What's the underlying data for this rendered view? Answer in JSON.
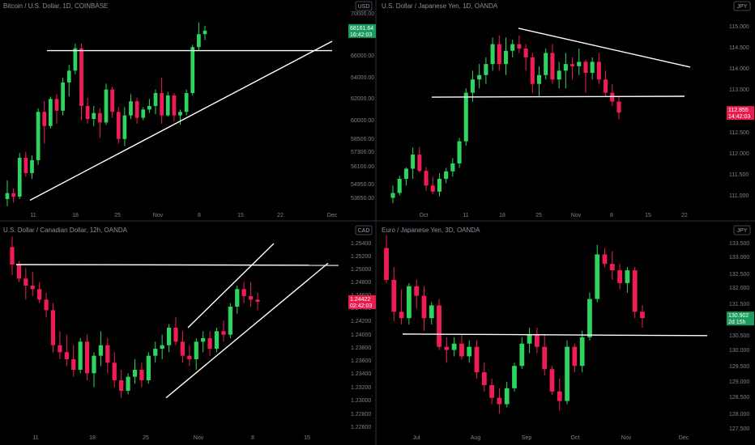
{
  "colors": {
    "up": "#2fd45e",
    "down": "#f01d54",
    "bg": "#000000",
    "text": "#8b8f99",
    "line": "#ffffff",
    "sep": "#2a2e39",
    "badge_up": "#1a9c5c",
    "badge_down": "#ea1b4f"
  },
  "panels": [
    {
      "title": "Bitcoin / U.S. Dollar, 1D, COINBASE",
      "currency": "USD",
      "price": "68161.64",
      "countdown": "16:42:03",
      "price_dir": "up",
      "y_ticks": [
        "70000.00",
        "68000.00",
        "66000.00",
        "64000.00",
        "62000.00",
        "60000.00",
        "58500.00",
        "57300.00",
        "56100.00",
        "54950.00",
        "53650.00"
      ],
      "x_ticks": [
        "11",
        "18",
        "25",
        "Nov",
        "8",
        "15",
        "22",
        "Dec"
      ]
    },
    {
      "title": "U.S. Dollar / Japanese Yen, 1D, OANDA",
      "currency": "JPY",
      "price": "112.855",
      "countdown": "14:42:03",
      "price_dir": "down",
      "y_ticks": [
        "115.000",
        "114.500",
        "114.000",
        "113.500",
        "113.000",
        "112.500",
        "112.000",
        "111.500",
        "111.000"
      ],
      "x_ticks": [
        "Oct",
        "11",
        "18",
        "25",
        "Nov",
        "8",
        "15",
        "22"
      ]
    },
    {
      "title": "U.S. Dollar / Canadian Dollar, 12h, OANDA",
      "currency": "CAD",
      "price": "1.24422",
      "countdown": "02:42:03",
      "price_dir": "down",
      "y_ticks": [
        "1.25400",
        "1.25200",
        "1.25000",
        "1.24800",
        "1.24600",
        "1.24400",
        "1.24200",
        "1.24000",
        "1.23800",
        "1.23600",
        "1.23400",
        "1.23200",
        "1.23000",
        "1.22800",
        "1.22600"
      ],
      "x_ticks": [
        "11",
        "18",
        "25",
        "Nov",
        "8",
        "15"
      ]
    },
    {
      "title": "Euro / Japanese Yen, 3D, OANDA",
      "currency": "JPY",
      "price": "130.902",
      "countdown": "2d 15h",
      "price_dir": "up",
      "y_ticks": [
        "133.500",
        "133.000",
        "132.500",
        "132.000",
        "131.500",
        "131.000",
        "130.500",
        "130.000",
        "129.500",
        "129.000",
        "128.500",
        "128.000",
        "127.500"
      ],
      "x_ticks": [
        "Jul",
        "Aug",
        "Sep",
        "Oct",
        "Nov",
        "Dec"
      ]
    }
  ],
  "chart_data": [
    {
      "type": "candlestick",
      "title": "Bitcoin / U.S. Dollar, 1D, COINBASE",
      "ylim": [
        52800,
        70800
      ],
      "candles": [
        [
          53900,
          55500,
          53300,
          54400
        ],
        [
          54400,
          54800,
          53600,
          54100
        ],
        [
          54100,
          57800,
          53900,
          57400
        ],
        [
          57400,
          57900,
          55800,
          56100
        ],
        [
          56100,
          57600,
          55600,
          57200
        ],
        [
          57200,
          61600,
          56800,
          61300
        ],
        [
          61300,
          62200,
          58600,
          60100
        ],
        [
          60100,
          62600,
          59900,
          62400
        ],
        [
          62400,
          62800,
          60300,
          61400
        ],
        [
          61400,
          64200,
          61000,
          63800
        ],
        [
          63800,
          65300,
          62600,
          64800
        ],
        [
          64800,
          67100,
          64500,
          66700
        ],
        [
          66700,
          67100,
          60600,
          61800
        ],
        [
          61800,
          62500,
          60300,
          60700
        ],
        [
          60700,
          61800,
          60100,
          61200
        ],
        [
          61200,
          61600,
          59100,
          60400
        ],
        [
          60400,
          63700,
          60200,
          63200
        ],
        [
          63200,
          63400,
          60800,
          61300
        ],
        [
          61300,
          61700,
          58600,
          59000
        ],
        [
          59000,
          61700,
          58400,
          61000
        ],
        [
          61000,
          62800,
          60700,
          62200
        ],
        [
          62200,
          62500,
          60300,
          60800
        ],
        [
          60800,
          61700,
          60600,
          61500
        ],
        [
          61500,
          62400,
          61200,
          61800
        ],
        [
          61800,
          63200,
          61100,
          62900
        ],
        [
          62900,
          64200,
          60300,
          61000
        ],
        [
          61000,
          63000,
          60900,
          62700
        ],
        [
          62700,
          62900,
          60500,
          61000
        ],
        [
          61000,
          61500,
          60200,
          61300
        ],
        [
          61300,
          63200,
          61000,
          62900
        ],
        [
          62900,
          67000,
          62700,
          66800
        ],
        [
          66800,
          68900,
          66500,
          67900
        ],
        [
          67900,
          68600,
          67400,
          68200
        ]
      ],
      "lines": [
        {
          "label": "horizontal",
          "points": [
            [
              "2021-10-04",
              66500
            ],
            [
              "2021-12-01",
              66500
            ]
          ]
        },
        {
          "label": "trend",
          "points": [
            [
              "2021-10-05",
              53800
            ],
            [
              "2021-12-01",
              67300
            ]
          ]
        }
      ]
    },
    {
      "type": "candlestick",
      "title": "U.S. Dollar / Japanese Yen, 1D, OANDA",
      "ylim": [
        110.6,
        115.4
      ],
      "candles": [
        [
          110.92,
          111.2,
          110.8,
          111.03
        ],
        [
          111.03,
          111.42,
          110.97,
          111.35
        ],
        [
          111.35,
          111.61,
          111.2,
          111.58
        ],
        [
          111.58,
          112.06,
          111.35,
          111.9
        ],
        [
          111.9,
          112.07,
          111.5,
          111.53
        ],
        [
          111.53,
          111.62,
          111.08,
          111.2
        ],
        [
          111.2,
          111.4,
          111.0,
          111.06
        ],
        [
          111.06,
          111.48,
          110.95,
          111.35
        ],
        [
          111.35,
          111.6,
          111.25,
          111.52
        ],
        [
          111.52,
          111.82,
          111.4,
          111.7
        ],
        [
          111.7,
          112.28,
          111.6,
          112.2
        ],
        [
          112.2,
          113.4,
          112.1,
          113.3
        ],
        [
          113.3,
          113.8,
          113.1,
          113.6
        ],
        [
          113.6,
          113.95,
          113.4,
          113.7
        ],
        [
          113.7,
          114.1,
          113.5,
          113.95
        ],
        [
          113.95,
          114.55,
          113.8,
          114.4
        ],
        [
          114.4,
          114.6,
          113.8,
          113.95
        ],
        [
          113.95,
          114.55,
          113.7,
          114.25
        ],
        [
          114.25,
          114.5,
          114.1,
          114.4
        ],
        [
          114.4,
          114.6,
          114.2,
          114.3
        ],
        [
          114.3,
          114.4,
          113.8,
          114.1
        ],
        [
          114.1,
          114.2,
          113.3,
          113.5
        ],
        [
          113.5,
          113.9,
          113.2,
          113.7
        ],
        [
          113.7,
          114.3,
          113.6,
          114.2
        ],
        [
          114.2,
          114.4,
          113.5,
          113.6
        ],
        [
          113.6,
          114.0,
          113.4,
          113.8
        ],
        [
          113.8,
          114.2,
          113.4,
          113.95
        ],
        [
          113.95,
          114.1,
          113.6,
          113.9
        ],
        [
          113.9,
          114.3,
          113.7,
          114.0
        ],
        [
          114.0,
          114.05,
          113.3,
          113.75
        ],
        [
          113.75,
          114.1,
          113.6,
          114.0
        ],
        [
          114.0,
          114.2,
          113.5,
          113.6
        ],
        [
          113.6,
          113.8,
          113.2,
          113.3
        ],
        [
          113.3,
          113.5,
          113.0,
          113.1
        ],
        [
          113.1,
          113.2,
          112.7,
          112.85
        ]
      ],
      "lines": [
        {
          "label": "descending",
          "points": [
            [
              "2021-10-18",
              114.76
            ],
            [
              "2021-11-20",
              113.88
            ]
          ]
        },
        {
          "label": "support",
          "points": [
            [
              "2021-10-01",
              113.2
            ],
            [
              "2021-11-20",
              113.22
            ]
          ]
        }
      ]
    },
    {
      "type": "candlestick",
      "title": "U.S. Dollar / Canadian Dollar, 12h, OANDA",
      "ylim": [
        1.2255,
        1.2555
      ],
      "candles": [
        [
          1.252,
          1.2535,
          1.248,
          1.2495
        ],
        [
          1.2495,
          1.25,
          1.247,
          1.2475
        ],
        [
          1.2475,
          1.249,
          1.2445,
          1.2465
        ],
        [
          1.2465,
          1.2485,
          1.245,
          1.246
        ],
        [
          1.246,
          1.247,
          1.244,
          1.2445
        ],
        [
          1.2445,
          1.2455,
          1.242,
          1.243
        ],
        [
          1.243,
          1.244,
          1.237,
          1.238
        ],
        [
          1.238,
          1.24,
          1.236,
          1.237
        ],
        [
          1.237,
          1.2395,
          1.235,
          1.236
        ],
        [
          1.236,
          1.238,
          1.2335,
          1.2345
        ],
        [
          1.2345,
          1.239,
          1.234,
          1.2385
        ],
        [
          1.2385,
          1.2395,
          1.233,
          1.234
        ],
        [
          1.234,
          1.237,
          1.232,
          1.2365
        ],
        [
          1.2365,
          1.24,
          1.235,
          1.238
        ],
        [
          1.238,
          1.239,
          1.234,
          1.2355
        ],
        [
          1.2355,
          1.237,
          1.232,
          1.233
        ],
        [
          1.233,
          1.2345,
          1.2305,
          1.2315
        ],
        [
          1.2315,
          1.234,
          1.231,
          1.2335
        ],
        [
          1.2335,
          1.236,
          1.2325,
          1.2345
        ],
        [
          1.2345,
          1.2355,
          1.232,
          1.233
        ],
        [
          1.233,
          1.237,
          1.2325,
          1.2365
        ],
        [
          1.2365,
          1.2385,
          1.2355,
          1.2375
        ],
        [
          1.2375,
          1.2395,
          1.236,
          1.238
        ],
        [
          1.238,
          1.241,
          1.237,
          1.2405
        ],
        [
          1.2405,
          1.242,
          1.238,
          1.2385
        ],
        [
          1.2385,
          1.24,
          1.2355,
          1.2365
        ],
        [
          1.2365,
          1.238,
          1.235,
          1.236
        ],
        [
          1.236,
          1.239,
          1.2345,
          1.2385
        ],
        [
          1.2385,
          1.24,
          1.237,
          1.239
        ],
        [
          1.239,
          1.24,
          1.2365,
          1.2375
        ],
        [
          1.2375,
          1.2405,
          1.237,
          1.24
        ],
        [
          1.24,
          1.2415,
          1.2385,
          1.2395
        ],
        [
          1.2395,
          1.244,
          1.239,
          1.2435
        ],
        [
          1.2435,
          1.2465,
          1.2425,
          1.246
        ],
        [
          1.246,
          1.247,
          1.244,
          1.245
        ],
        [
          1.245,
          1.247,
          1.2435,
          1.2445
        ],
        [
          1.2445,
          1.2455,
          1.243,
          1.2442
        ]
      ],
      "lines": [
        {
          "label": "horizontal",
          "points": [
            [
              "2021-10-05",
              1.2495
            ],
            [
              "2021-11-21",
              1.2494
            ]
          ]
        },
        {
          "label": "channel-top",
          "points": [
            [
              "2021-10-29",
              1.2405
            ],
            [
              "2021-11-12",
              1.2525
            ]
          ]
        },
        {
          "label": "channel-bottom",
          "points": [
            [
              "2021-10-29",
              1.2305
            ],
            [
              "2021-11-21",
              1.2497
            ]
          ]
        }
      ]
    },
    {
      "type": "candlestick",
      "title": "Euro / Japanese Yen, 3D, OANDA",
      "ylim": [
        127.3,
        133.9
      ],
      "candles": [
        [
          133.1,
          133.5,
          132.0,
          132.1
        ],
        [
          132.1,
          132.5,
          130.8,
          131.1
        ],
        [
          131.1,
          131.8,
          130.7,
          130.9
        ],
        [
          130.9,
          132.0,
          130.7,
          131.9
        ],
        [
          131.9,
          132.1,
          131.2,
          131.6
        ],
        [
          131.6,
          131.9,
          130.5,
          130.9
        ],
        [
          130.9,
          131.4,
          130.7,
          131.3
        ],
        [
          131.3,
          131.5,
          129.9,
          130.0
        ],
        [
          130.0,
          130.3,
          129.5,
          129.9
        ],
        [
          129.9,
          130.3,
          129.7,
          130.1
        ],
        [
          130.1,
          130.4,
          129.6,
          129.7
        ],
        [
          129.7,
          130.2,
          129.5,
          130.0
        ],
        [
          130.0,
          130.2,
          129.0,
          129.2
        ],
        [
          129.2,
          129.5,
          128.6,
          128.8
        ],
        [
          128.8,
          129.0,
          128.2,
          128.4
        ],
        [
          128.4,
          128.7,
          127.9,
          128.2
        ],
        [
          128.2,
          128.9,
          128.1,
          128.7
        ],
        [
          128.7,
          129.5,
          128.6,
          129.4
        ],
        [
          129.4,
          130.3,
          129.3,
          130.1
        ],
        [
          130.1,
          130.6,
          129.8,
          130.4
        ],
        [
          130.4,
          130.6,
          129.8,
          130.0
        ],
        [
          130.0,
          130.4,
          129.1,
          129.3
        ],
        [
          129.3,
          129.4,
          128.5,
          128.6
        ],
        [
          128.6,
          129.0,
          128.0,
          128.3
        ],
        [
          128.3,
          130.2,
          128.2,
          130.0
        ],
        [
          130.0,
          130.1,
          129.2,
          129.4
        ],
        [
          129.4,
          130.5,
          129.2,
          130.3
        ],
        [
          130.3,
          131.7,
          130.2,
          131.5
        ],
        [
          131.5,
          133.2,
          131.4,
          132.9
        ],
        [
          132.9,
          133.1,
          132.5,
          132.6
        ],
        [
          132.6,
          133.0,
          132.1,
          132.4
        ],
        [
          132.4,
          132.6,
          131.8,
          132.0
        ],
        [
          132.0,
          132.5,
          131.7,
          132.4
        ],
        [
          132.4,
          132.5,
          130.9,
          131.1
        ],
        [
          131.1,
          131.3,
          130.6,
          130.9
        ]
      ],
      "lines": [
        {
          "label": "horizontal",
          "points": [
            [
              "2021-06-25",
              130.4
            ],
            [
              "2021-12-20",
              130.35
            ]
          ]
        }
      ]
    }
  ]
}
